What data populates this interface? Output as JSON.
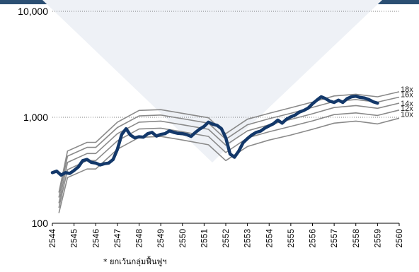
{
  "colors": {
    "strip": "#2b4f73",
    "watermark": "#eef1f6",
    "price_line": "#13386a",
    "band_lines": "#8a8a8a",
    "gridline": "#555555"
  },
  "chart_data": {
    "type": "line",
    "title": "",
    "xlabel": "",
    "ylabel": "",
    "y_scale": "log",
    "ylim": [
      100,
      10000
    ],
    "xlim": [
      2544,
      2560
    ],
    "y_ticks": [
      {
        "value": 100,
        "label": "100"
      },
      {
        "value": 1000,
        "label": "1,000"
      },
      {
        "value": 10000,
        "label": "10,000"
      }
    ],
    "x_ticks": [
      "2544",
      "2545",
      "2546",
      "2547",
      "2548",
      "2549",
      "2550",
      "2551",
      "2552",
      "2553",
      "2554",
      "2555",
      "2556",
      "2557",
      "2558",
      "2559",
      "2560"
    ],
    "gridlines": "dotted at 1,000 and 10,000",
    "band_labels": [
      {
        "label": "18x",
        "value_at_end": 1740
      },
      {
        "label": "16x",
        "value_at_end": 1550
      },
      {
        "label": "14x",
        "value_at_end": 1360
      },
      {
        "label": "12x",
        "value_at_end": 1170
      },
      {
        "label": "10x",
        "value_at_end": 980
      }
    ],
    "series": [
      {
        "name": "",
        "role": "price",
        "x": [
          2544.0,
          2544.2,
          2544.4,
          2544.6,
          2544.8,
          2545.0,
          2545.2,
          2545.4,
          2545.6,
          2545.8,
          2546.0,
          2546.2,
          2546.4,
          2546.6,
          2546.8,
          2547.0,
          2547.2,
          2547.4,
          2547.6,
          2547.8,
          2548.0,
          2548.2,
          2548.4,
          2548.6,
          2548.8,
          2549.0,
          2549.2,
          2549.4,
          2549.6,
          2549.8,
          2550.0,
          2550.2,
          2550.4,
          2550.6,
          2550.8,
          2551.0,
          2551.2,
          2551.4,
          2551.6,
          2551.8,
          2552.0,
          2552.2,
          2552.4,
          2552.6,
          2552.8,
          2553.0,
          2553.2,
          2553.4,
          2553.6,
          2553.8,
          2554.0,
          2554.2,
          2554.4,
          2554.6,
          2554.8,
          2555.0,
          2555.2,
          2555.4,
          2555.6,
          2555.8,
          2556.0,
          2556.2,
          2556.4,
          2556.6,
          2556.8,
          2557.0,
          2557.2,
          2557.4,
          2557.6,
          2557.8,
          2558.0,
          2558.2,
          2558.4,
          2558.6,
          2558.8,
          2559.0
        ],
        "values": [
          300,
          310,
          285,
          300,
          295,
          315,
          340,
          390,
          400,
          375,
          370,
          355,
          365,
          370,
          400,
          500,
          690,
          780,
          680,
          640,
          655,
          650,
          700,
          720,
          665,
          690,
          700,
          745,
          720,
          705,
          700,
          685,
          660,
          720,
          775,
          820,
          900,
          860,
          840,
          780,
          640,
          450,
          420,
          480,
          575,
          630,
          680,
          720,
          740,
          790,
          830,
          870,
          940,
          880,
          960,
          1010,
          1050,
          1120,
          1160,
          1220,
          1340,
          1450,
          1560,
          1500,
          1420,
          1380,
          1450,
          1380,
          1500,
          1560,
          1580,
          1540,
          1520,
          1470,
          1400,
          1360
        ]
      },
      {
        "name": "18x",
        "role": "pe-band",
        "x": [
          2544.3,
          2544.7,
          2545.6,
          2546.0,
          2547.0,
          2548.0,
          2549.0,
          2550.0,
          2551.2,
          2552.0,
          2553.0,
          2554.0,
          2555.0,
          2556.0,
          2557.0,
          2558.0,
          2559.0,
          2560.0
        ],
        "values": [
          195,
          480,
          580,
          580,
          900,
          1160,
          1180,
          1090,
          990,
          700,
          960,
          1090,
          1230,
          1390,
          1590,
          1650,
          1560,
          1740
        ]
      },
      {
        "name": "16x",
        "role": "pe-band",
        "x": [
          2544.3,
          2544.7,
          2545.6,
          2546.0,
          2547.0,
          2548.0,
          2549.0,
          2550.0,
          2551.2,
          2552.0,
          2553.0,
          2554.0,
          2555.0,
          2556.0,
          2557.0,
          2558.0,
          2559.0,
          2560.0
        ],
        "values": [
          175,
          430,
          520,
          520,
          800,
          1030,
          1050,
          970,
          880,
          620,
          850,
          970,
          1090,
          1240,
          1410,
          1470,
          1390,
          1550
        ]
      },
      {
        "name": "14x",
        "role": "pe-band",
        "x": [
          2544.3,
          2544.7,
          2545.6,
          2546.0,
          2547.0,
          2548.0,
          2549.0,
          2550.0,
          2551.2,
          2552.0,
          2553.0,
          2554.0,
          2555.0,
          2556.0,
          2557.0,
          2558.0,
          2559.0,
          2560.0
        ],
        "values": [
          155,
          375,
          455,
          455,
          700,
          900,
          920,
          850,
          770,
          545,
          745,
          850,
          955,
          1080,
          1235,
          1290,
          1215,
          1360
        ]
      },
      {
        "name": "12x",
        "role": "pe-band",
        "x": [
          2544.3,
          2544.7,
          2545.6,
          2546.0,
          2547.0,
          2548.0,
          2549.0,
          2550.0,
          2551.2,
          2552.0,
          2553.0,
          2554.0,
          2555.0,
          2556.0,
          2557.0,
          2558.0,
          2559.0,
          2560.0
        ],
        "values": [
          140,
          320,
          390,
          390,
          600,
          775,
          790,
          730,
          660,
          465,
          640,
          730,
          820,
          925,
          1060,
          1100,
          1040,
          1170
        ]
      },
      {
        "name": "10x",
        "role": "pe-band",
        "x": [
          2544.3,
          2544.7,
          2545.6,
          2546.0,
          2547.0,
          2548.0,
          2549.0,
          2550.0,
          2551.2,
          2552.0,
          2553.0,
          2554.0,
          2555.0,
          2556.0,
          2557.0,
          2558.0,
          2559.0,
          2560.0
        ],
        "values": [
          125,
          270,
          325,
          325,
          500,
          645,
          660,
          610,
          550,
          390,
          530,
          610,
          680,
          770,
          880,
          920,
          865,
          980
        ]
      }
    ],
    "footnote": "* ยกเว้นกลุ่มฟื้นฟูฯ"
  }
}
